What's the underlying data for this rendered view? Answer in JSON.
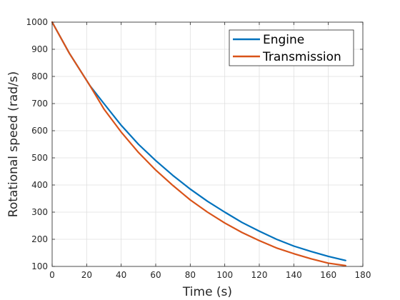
{
  "chart_data": {
    "type": "line",
    "title": "",
    "xlabel": "Time (s)",
    "ylabel": "Rotational speed (rad/s)",
    "xlim": [
      0,
      180
    ],
    "ylim": [
      100,
      1000
    ],
    "xticks": [
      0,
      20,
      40,
      60,
      80,
      100,
      120,
      140,
      160,
      180
    ],
    "yticks": [
      100,
      200,
      300,
      400,
      500,
      600,
      700,
      800,
      900,
      1000
    ],
    "grid": true,
    "legend_position": "top-right",
    "series": [
      {
        "name": "Engine",
        "color": "#0072bd",
        "x": [
          0,
          10,
          20,
          22,
          30,
          40,
          50,
          60,
          70,
          80,
          90,
          100,
          110,
          120,
          130,
          140,
          150,
          160,
          170
        ],
        "y": [
          1000,
          885,
          785,
          765,
          700,
          620,
          550,
          490,
          435,
          385,
          340,
          300,
          262,
          230,
          200,
          175,
          155,
          137,
          122
        ]
      },
      {
        "name": "Transmission",
        "color": "#d95319",
        "x": [
          0,
          10,
          20,
          22,
          30,
          40,
          50,
          60,
          70,
          80,
          90,
          100,
          110,
          120,
          130,
          140,
          150,
          160,
          170
        ],
        "y": [
          1000,
          885,
          785,
          765,
          680,
          595,
          520,
          455,
          398,
          345,
          300,
          260,
          225,
          195,
          168,
          147,
          128,
          112,
          103
        ]
      }
    ]
  }
}
